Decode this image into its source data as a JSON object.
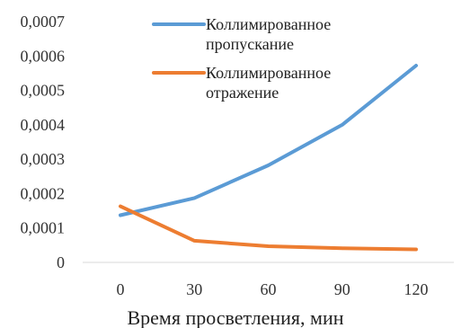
{
  "chart_data": {
    "type": "line",
    "title": "",
    "xlabel": "Время просветления, мин",
    "ylabel": "",
    "x": [
      0,
      30,
      60,
      90,
      120
    ],
    "x_tick_labels": [
      "0",
      "30",
      "60",
      "90",
      "120"
    ],
    "ylim": [
      0,
      0.0007
    ],
    "y_ticks": [
      0,
      0.0001,
      0.0002,
      0.0003,
      0.0004,
      0.0005,
      0.0006,
      0.0007
    ],
    "y_tick_labels": [
      "0",
      "0,0001",
      "0,0002",
      "0,0003",
      "0,0004",
      "0,0005",
      "0,0006",
      "0,0007"
    ],
    "grid": false,
    "legend_position": "top",
    "series": [
      {
        "name_lines": [
          "Коллимированное",
          "пропускание"
        ],
        "color": "#5b9bd5",
        "values": [
          0.000137,
          0.000187,
          0.000282,
          0.0004,
          0.000572
        ]
      },
      {
        "name_lines": [
          "Коллимированное",
          "отражение"
        ],
        "color": "#ed7d31",
        "values": [
          0.000163,
          6.3e-05,
          4.7e-05,
          4.1e-05,
          3.8e-05
        ]
      }
    ]
  }
}
